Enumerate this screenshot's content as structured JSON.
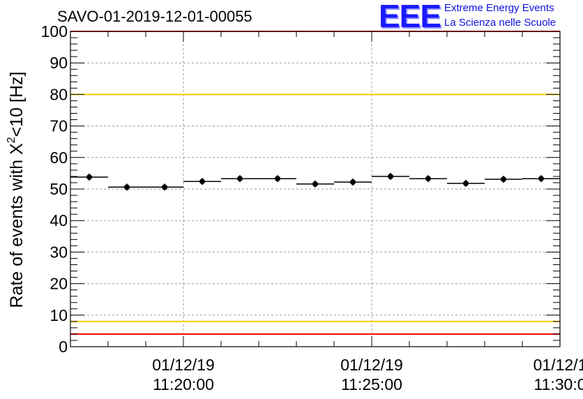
{
  "title": "SAVO-01-2019-12-01-00055",
  "logo": {
    "mark": "EEE",
    "line1": "Extreme Energy Events",
    "line2": "La Scienza nelle Scuole",
    "color": "#1a1aff"
  },
  "chart_data": {
    "type": "scatter",
    "title": "SAVO-01-2019-12-01-00055",
    "ylabel_main": "Rate of events with X",
    "ylabel_sup": "2",
    "ylabel_rest": "<10 [Hz]",
    "xlabel": "",
    "ylim": [
      0,
      100
    ],
    "xlim_minutes": [
      17.0,
      30.0
    ],
    "y_ticks": [
      "0",
      "10",
      "20",
      "30",
      "40",
      "50",
      "60",
      "70",
      "80",
      "90",
      "100"
    ],
    "x_ticks": [
      {
        "minute": 20,
        "date": "01/12/19",
        "time": "11:20:00"
      },
      {
        "minute": 25,
        "date": "01/12/19",
        "time": "11:25:00"
      },
      {
        "minute": 30,
        "date": "01/12/1",
        "time": "11:30:0"
      }
    ],
    "grid": true,
    "series": [
      {
        "name": "rate",
        "bin_width_minutes": 1.0,
        "x_minutes": [
          17.5,
          18.5,
          19.5,
          20.5,
          21.5,
          22.5,
          23.5,
          24.5,
          25.5,
          26.5,
          27.5,
          28.5,
          29.5
        ],
        "values": [
          53.8,
          50.6,
          50.6,
          52.4,
          53.3,
          53.3,
          51.6,
          52.2,
          54.0,
          53.3,
          51.8,
          53.1,
          53.3
        ],
        "color": "#000000"
      }
    ],
    "reference_lines": [
      {
        "name": "red-upper",
        "y": 100,
        "color": "#ff0000"
      },
      {
        "name": "yellow-upper",
        "y": 80,
        "color": "#ffcc00"
      },
      {
        "name": "yellow-lower",
        "y": 8,
        "color": "#ffcc00"
      },
      {
        "name": "red-lower",
        "y": 4,
        "color": "#ff0000"
      }
    ]
  }
}
